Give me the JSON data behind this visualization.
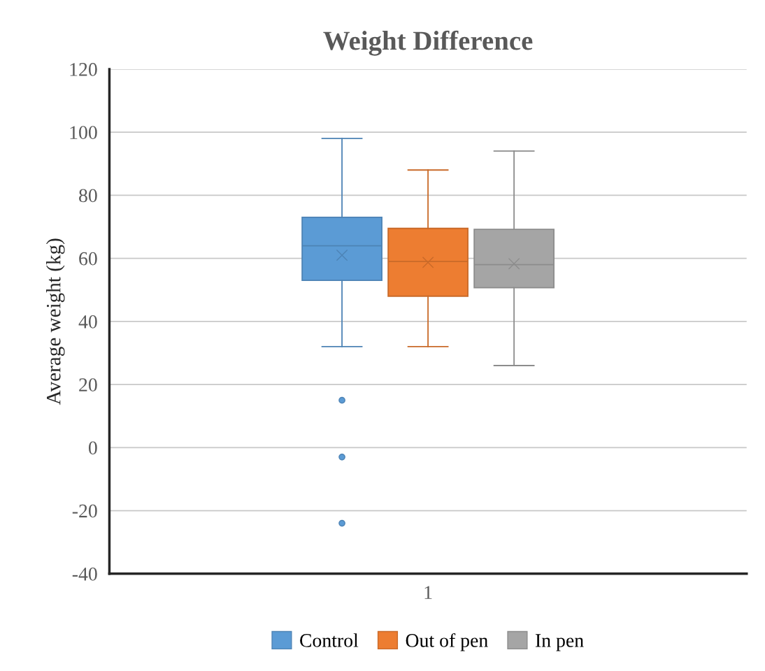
{
  "chart_data": {
    "type": "box",
    "title": "Weight Difference",
    "ylabel": "Average weight (kg)",
    "categories": [
      "1"
    ],
    "series": [
      {
        "name": "Control",
        "color": "#5b9bd5",
        "boxes": [
          {
            "low": 32,
            "q1": 53,
            "median": 64,
            "q3": 73,
            "high": 98,
            "mean": 61,
            "outliers": [
              15,
              -3,
              -24
            ]
          }
        ]
      },
      {
        "name": "Out of pen",
        "color": "#ed7d31",
        "boxes": [
          {
            "low": 32,
            "q1": 48,
            "median": 59,
            "q3": 69.5,
            "high": 88,
            "mean": 58.7
          }
        ]
      },
      {
        "name": "In pen",
        "color": "#a5a5a5",
        "boxes": [
          {
            "low": 26,
            "q1": 50.7,
            "median": 58,
            "q3": 69.2,
            "high": 94,
            "mean": 58.3
          }
        ]
      }
    ],
    "ylim": [
      -40,
      120
    ],
    "yticks": [
      -40,
      -20,
      0,
      20,
      40,
      60,
      80,
      100,
      120
    ],
    "grid": "y",
    "legend": "bottom",
    "marker": "cross"
  }
}
